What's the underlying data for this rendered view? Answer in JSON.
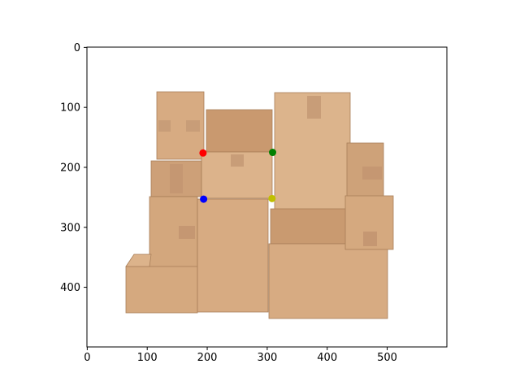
{
  "chart_data": {
    "type": "scatter",
    "title": "",
    "xlabel": "",
    "ylabel": "",
    "xlim": [
      -0.5,
      599.5
    ],
    "ylim": [
      499.5,
      -0.5
    ],
    "xticks": [
      0,
      100,
      200,
      300,
      400,
      500
    ],
    "yticks": [
      0,
      100,
      200,
      300,
      400
    ],
    "grid": false,
    "background": "photo-of-cardboard-boxes",
    "points": [
      {
        "x": 193,
        "y": 176,
        "color": "#ff0000"
      },
      {
        "x": 309,
        "y": 175,
        "color": "#008000"
      },
      {
        "x": 194,
        "y": 253,
        "color": "#0000ff"
      },
      {
        "x": 308,
        "y": 252,
        "color": "#bfbf00"
      }
    ]
  }
}
